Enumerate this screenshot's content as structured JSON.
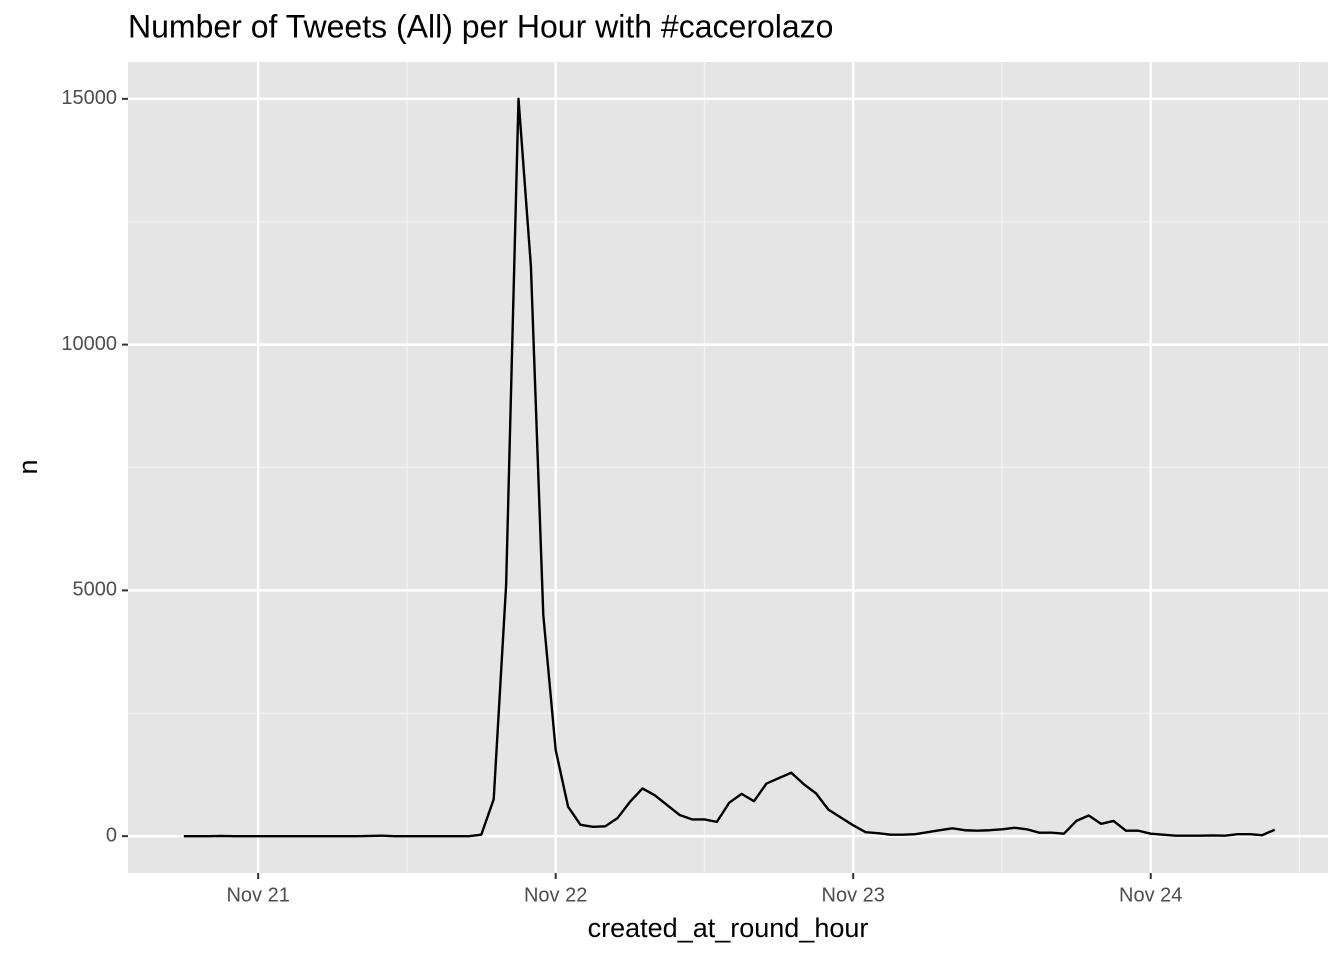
{
  "chart_data": {
    "type": "line",
    "title": "Number of Tweets (All) per Hour with #cacerolazo",
    "x_label": "created_at_round_hour",
    "y_label": "n",
    "x": [
      "Nov 20 18:00",
      "Nov 20 19:00",
      "Nov 20 20:00",
      "Nov 20 21:00",
      "Nov 20 22:00",
      "Nov 20 23:00",
      "Nov 21 00:00",
      "Nov 21 01:00",
      "Nov 21 02:00",
      "Nov 21 03:00",
      "Nov 21 04:00",
      "Nov 21 05:00",
      "Nov 21 06:00",
      "Nov 21 07:00",
      "Nov 21 08:00",
      "Nov 21 09:00",
      "Nov 21 10:00",
      "Nov 21 11:00",
      "Nov 21 12:00",
      "Nov 21 13:00",
      "Nov 21 14:00",
      "Nov 21 15:00",
      "Nov 21 16:00",
      "Nov 21 17:00",
      "Nov 21 18:00",
      "Nov 21 19:00",
      "Nov 21 20:00",
      "Nov 21 21:00",
      "Nov 21 22:00",
      "Nov 21 23:00",
      "Nov 22 00:00",
      "Nov 22 01:00",
      "Nov 22 02:00",
      "Nov 22 03:00",
      "Nov 22 04:00",
      "Nov 22 05:00",
      "Nov 22 06:00",
      "Nov 22 07:00",
      "Nov 22 08:00",
      "Nov 22 09:00",
      "Nov 22 10:00",
      "Nov 22 11:00",
      "Nov 22 12:00",
      "Nov 22 13:00",
      "Nov 22 14:00",
      "Nov 22 15:00",
      "Nov 22 16:00",
      "Nov 22 17:00",
      "Nov 22 18:00",
      "Nov 22 19:00",
      "Nov 22 20:00",
      "Nov 22 21:00",
      "Nov 22 22:00",
      "Nov 22 23:00",
      "Nov 23 00:00",
      "Nov 23 01:00",
      "Nov 23 02:00",
      "Nov 23 03:00",
      "Nov 23 04:00",
      "Nov 23 05:00",
      "Nov 23 06:00",
      "Nov 23 07:00",
      "Nov 23 08:00",
      "Nov 23 09:00",
      "Nov 23 10:00",
      "Nov 23 11:00",
      "Nov 23 12:00",
      "Nov 23 13:00",
      "Nov 23 14:00",
      "Nov 23 15:00",
      "Nov 23 16:00",
      "Nov 23 17:00",
      "Nov 23 18:00",
      "Nov 23 19:00",
      "Nov 23 20:00",
      "Nov 23 21:00",
      "Nov 23 22:00",
      "Nov 23 23:00",
      "Nov 24 00:00",
      "Nov 24 01:00",
      "Nov 24 02:00",
      "Nov 24 03:00",
      "Nov 24 04:00",
      "Nov 24 05:00",
      "Nov 24 06:00",
      "Nov 24 07:00",
      "Nov 24 08:00",
      "Nov 24 09:00",
      "Nov 24 10:00"
    ],
    "series": [
      {
        "name": "n",
        "color": "#000000",
        "values": [
          0,
          0,
          0,
          5,
          0,
          0,
          0,
          0,
          0,
          0,
          0,
          0,
          0,
          0,
          0,
          5,
          10,
          0,
          0,
          0,
          0,
          0,
          0,
          0,
          30,
          750,
          5100,
          15000,
          11600,
          4500,
          1750,
          600,
          230,
          190,
          200,
          370,
          700,
          970,
          830,
          630,
          430,
          340,
          340,
          290,
          680,
          860,
          710,
          1070,
          1180,
          1290,
          1060,
          870,
          540,
          380,
          220,
          80,
          60,
          30,
          30,
          40,
          80,
          120,
          160,
          120,
          110,
          120,
          140,
          170,
          140,
          70,
          70,
          50,
          310,
          420,
          250,
          310,
          110,
          110,
          50,
          30,
          10,
          10,
          10,
          15,
          10,
          40,
          40,
          20,
          130
        ]
      }
    ],
    "xlim": [
      "Nov 20 13:30",
      "Nov 24 14:18"
    ],
    "xticks": [
      "Nov 21",
      "Nov 22",
      "Nov 23",
      "Nov 24"
    ],
    "ylim": [
      -750,
      15750
    ],
    "yticks": [
      0,
      5000,
      10000,
      15000
    ],
    "grid": true
  }
}
